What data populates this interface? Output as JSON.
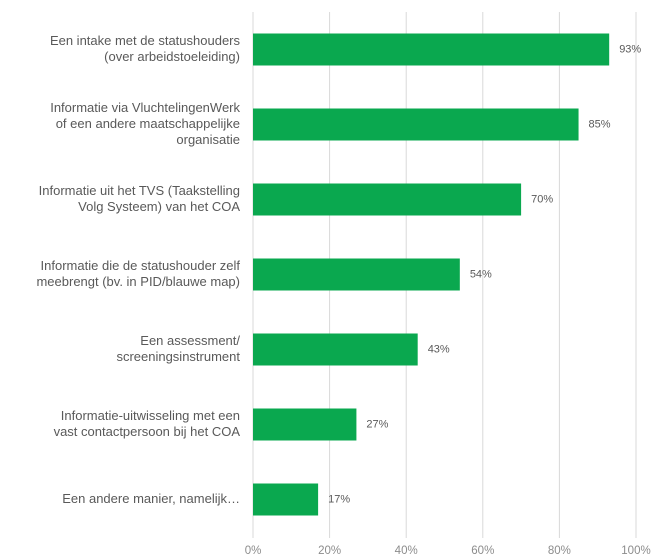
{
  "chart_data": {
    "type": "bar",
    "orientation": "horizontal",
    "categories": [
      [
        "Een intake met de statushouders",
        "(over arbeidstoeleiding)"
      ],
      [
        "Informatie via VluchtelingenWerk",
        "of een  andere maatschappelijke",
        "organisatie"
      ],
      [
        "Informatie uit het TVS (Taakstelling",
        "Volg Systeem) van het COA"
      ],
      [
        "Informatie die de statushouder zelf",
        "meebrengt (bv. in PID/blauwe map)"
      ],
      [
        "Een assessment/",
        "screeningsinstrument"
      ],
      [
        "Informatie-uitwisseling met een",
        "vast contactpersoon bij het COA"
      ],
      [
        "Een andere manier, namelijk…"
      ]
    ],
    "values": [
      93,
      85,
      70,
      54,
      43,
      27,
      17
    ],
    "value_labels": [
      "93%",
      "85%",
      "70%",
      "54%",
      "43%",
      "27%",
      "17%"
    ],
    "color": "#0aa84f",
    "xlim": [
      0,
      100
    ],
    "xticks": [
      {
        "value": 0,
        "label": "0%"
      },
      {
        "value": 20,
        "label": "20%"
      },
      {
        "value": 40,
        "label": "40%"
      },
      {
        "value": 60,
        "label": "60%"
      },
      {
        "value": 80,
        "label": "80%"
      },
      {
        "value": 100,
        "label": "100%"
      }
    ],
    "grid": true
  }
}
